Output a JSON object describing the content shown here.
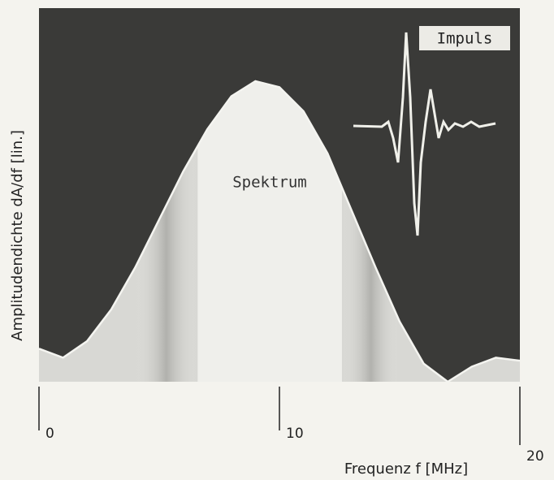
{
  "chart_data": {
    "type": "area",
    "x_label": "Frequenz f [MHz]",
    "y_label": "Amplitudendichte dA/df [lin.]",
    "annotations": [
      "Impuls",
      "Spektrum"
    ],
    "x": [
      0,
      1,
      2,
      3,
      4,
      5,
      6,
      7,
      8,
      9,
      10,
      11,
      12,
      13,
      14,
      15,
      16,
      17,
      18,
      19,
      20
    ],
    "values": [
      0.11,
      0.08,
      0.135,
      0.24,
      0.38,
      0.54,
      0.7,
      0.84,
      0.95,
      1.0,
      0.98,
      0.9,
      0.76,
      0.57,
      0.38,
      0.2,
      0.06,
      0.0,
      0.05,
      0.08,
      0.07
    ],
    "color": "#d8d8d4",
    "xlim": [
      0,
      20
    ],
    "xticks": [
      0,
      10,
      20
    ],
    "ylim": [
      0,
      1
    ]
  }
}
